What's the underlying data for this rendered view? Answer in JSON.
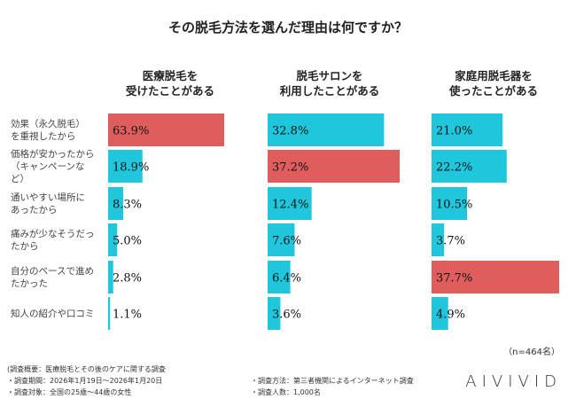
{
  "title": "その脱毛方法を選んだ理由は何ですか？",
  "chart_data": {
    "type": "bar",
    "orientation": "horizontal",
    "title": "その脱毛方法を選んだ理由は何ですか？",
    "categories": [
      "効果（永久脱毛）を重視したから",
      "価格が安かったから（キャンペーンなど）",
      "通いやすい場所にあったから",
      "痛みが少なそうだったから",
      "自分のペースで進めたかった",
      "知人の紹介や口コミ"
    ],
    "category_lines": [
      [
        "効果（永久脱毛）",
        "を重視したから"
      ],
      [
        "価格が安かったから",
        "（キャンペーンな",
        "ど）"
      ],
      [
        "通いやすい場所に",
        "あったから"
      ],
      [
        "痛みが少なそうだっ",
        "たから"
      ],
      [
        "自分のペースで進め",
        "たかった"
      ],
      [
        "知人の紹介や口コミ"
      ]
    ],
    "series": [
      {
        "name": "医療脱毛を受けたことがある",
        "name_lines": [
          "医療脱毛を",
          "受けたことがある"
        ],
        "values": [
          63.9,
          18.9,
          8.3,
          5.0,
          2.8,
          1.1
        ],
        "labels": [
          "63.9%",
          "18.9%",
          "8.3%",
          "5.0%",
          "2.8%",
          "1.1%"
        ],
        "highlight": 0
      },
      {
        "name": "脱毛サロンを利用したことがある",
        "name_lines": [
          "脱毛サロンを",
          "利用したことがある"
        ],
        "values": [
          32.8,
          37.2,
          12.4,
          7.6,
          6.4,
          3.6
        ],
        "labels": [
          "32.8%",
          "37.2%",
          "12.4%",
          "7.6%",
          "6.4%",
          "3.6%"
        ],
        "highlight": 1
      },
      {
        "name": "家庭用脱毛器を使ったことがある",
        "name_lines": [
          "家庭用脱毛器を",
          "使ったことがある"
        ],
        "values": [
          21.0,
          22.2,
          10.5,
          3.7,
          37.7,
          4.9
        ],
        "labels": [
          "21.0%",
          "22.2%",
          "10.5%",
          "3.7%",
          "37.7%",
          "4.9%"
        ],
        "highlight": 4
      }
    ],
    "colors": {
      "normal": "#1fc6dc",
      "highlight": "#e05d5d"
    }
  },
  "sample": "（n=464名）",
  "footer": {
    "summary": "(調査概要：医療脱毛とその後のケアに関する調査",
    "period": "・調査期間：2026年1月19日〜2026年1月20日",
    "target": "・調査対象：全国の25歳〜44歳の女性",
    "method": "・調査方法：第三者機関によるインターネット調査",
    "count": "・調査人数：1,000名"
  },
  "logo": "AIVIVID"
}
